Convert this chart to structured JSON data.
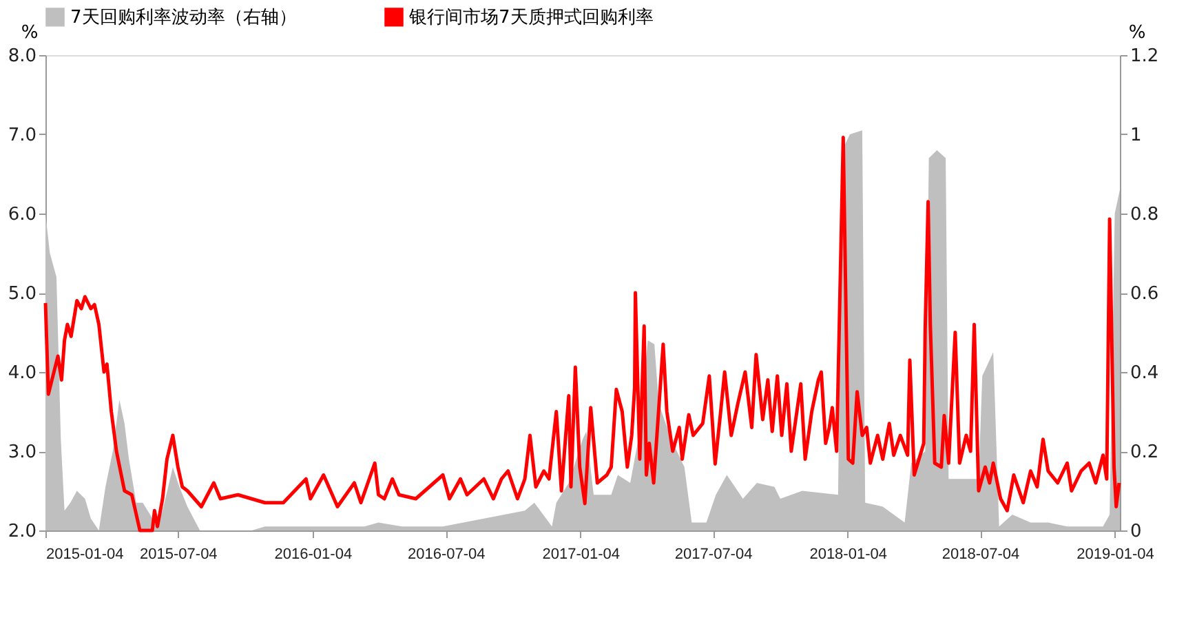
{
  "chart_data": {
    "type": "line",
    "legend": "top",
    "ylabel": "%",
    "y2label": "%",
    "xlim": [
      "2015-01-04",
      "2019-01-11"
    ],
    "xticks": [
      "2015-01-04",
      "2015-07-04",
      "2016-01-04",
      "2016-07-04",
      "2017-01-04",
      "2017-07-04",
      "2018-01-04",
      "2018-07-04",
      "2019-01-04"
    ],
    "ylim": [
      2,
      8
    ],
    "yticks": [
      {
        "value": 2,
        "label": "2.0"
      },
      {
        "value": 3,
        "label": "3.0"
      },
      {
        "value": 4,
        "label": "4.0"
      },
      {
        "value": 5,
        "label": "5.0"
      },
      {
        "value": 6,
        "label": "6.0"
      },
      {
        "value": 7,
        "label": "7.0"
      },
      {
        "value": 8,
        "label": "8.0"
      }
    ],
    "y2lim": [
      0,
      1.2
    ],
    "y2ticks": [
      0,
      0.2,
      0.4,
      0.6,
      0.8,
      1,
      1.2
    ],
    "series": [
      {
        "name": "7天回购利率波动率（右轴）",
        "type": "area",
        "axis": "y2",
        "color": "#bfbfbf",
        "x": [
          "2015-01-04",
          "2015-01-10",
          "2015-01-19",
          "2015-01-25",
          "2015-01-30",
          "2015-02-07",
          "2015-02-16",
          "2015-02-27",
          "2015-03-07",
          "2015-03-18",
          "2015-03-27",
          "2015-04-06",
          "2015-04-15",
          "2015-04-22",
          "2015-04-28",
          "2015-05-08",
          "2015-05-17",
          "2015-05-27",
          "2015-06-05",
          "2015-06-13",
          "2015-06-27",
          "2015-07-06",
          "2015-07-17",
          "2015-08-03",
          "2015-10-13",
          "2015-10-31",
          "2016-03-15",
          "2016-04-03",
          "2016-05-05",
          "2016-06-30",
          "2016-10-20",
          "2016-11-02",
          "2016-11-26",
          "2016-12-02",
          "2016-12-19",
          "2017-01-07",
          "2017-01-12",
          "2017-01-22",
          "2017-02-15",
          "2017-02-24",
          "2017-03-13",
          "2017-03-24",
          "2017-04-06",
          "2017-04-15",
          "2017-04-21",
          "2017-05-08",
          "2017-05-26",
          "2017-06-05",
          "2017-06-25",
          "2017-07-08",
          "2017-07-23",
          "2017-08-14",
          "2017-09-02",
          "2017-09-26",
          "2017-10-04",
          "2017-11-03",
          "2017-12-22",
          "2017-12-28",
          "2018-01-07",
          "2018-01-24",
          "2018-01-28",
          "2018-02-21",
          "2018-03-23",
          "2018-04-01",
          "2018-04-20",
          "2018-04-25",
          "2018-05-06",
          "2018-05-18",
          "2018-05-22",
          "2018-07-02",
          "2018-07-07",
          "2018-07-22",
          "2018-07-30",
          "2018-08-17",
          "2018-09-11",
          "2018-10-05",
          "2018-10-31",
          "2018-12-19",
          "2018-12-28",
          "2019-01-04",
          "2019-01-11"
        ],
        "values": [
          0.8,
          0.7,
          0.64,
          0.23,
          0.05,
          0.07,
          0.1,
          0.08,
          0.03,
          0.0,
          0.11,
          0.2,
          0.33,
          0.27,
          0.18,
          0.07,
          0.07,
          0.04,
          0.01,
          0.05,
          0.16,
          0.11,
          0.06,
          0.0,
          0.0,
          0.01,
          0.01,
          0.02,
          0.01,
          0.01,
          0.05,
          0.07,
          0.01,
          0.07,
          0.12,
          0.23,
          0.25,
          0.09,
          0.09,
          0.14,
          0.12,
          0.23,
          0.48,
          0.47,
          0.32,
          0.23,
          0.16,
          0.02,
          0.02,
          0.09,
          0.14,
          0.08,
          0.12,
          0.11,
          0.08,
          0.1,
          0.09,
          0.96,
          1.0,
          1.01,
          0.07,
          0.06,
          0.02,
          0.17,
          0.2,
          0.94,
          0.96,
          0.94,
          0.13,
          0.13,
          0.39,
          0.45,
          0.01,
          0.04,
          0.02,
          0.02,
          0.01,
          0.01,
          0.04,
          0.8,
          0.86
        ]
      },
      {
        "name": "银行间市场7天质押式回购利率",
        "type": "line",
        "color": "#ff0000",
        "x": [
          "2015-01-04",
          "2015-01-08",
          "2015-01-21",
          "2015-01-26",
          "2015-01-30",
          "2015-02-03",
          "2015-02-08",
          "2015-02-16",
          "2015-02-22",
          "2015-02-27",
          "2015-03-07",
          "2015-03-12",
          "2015-03-18",
          "2015-03-25",
          "2015-03-29",
          "2015-04-04",
          "2015-04-11",
          "2015-04-22",
          "2015-05-02",
          "2015-05-13",
          "2015-05-30",
          "2015-06-02",
          "2015-06-06",
          "2015-06-13",
          "2015-06-19",
          "2015-06-27",
          "2015-07-04",
          "2015-07-10",
          "2015-07-17",
          "2015-08-05",
          "2015-08-22",
          "2015-08-31",
          "2015-09-24",
          "2015-10-31",
          "2015-11-25",
          "2015-12-26",
          "2016-01-01",
          "2016-01-19",
          "2016-02-07",
          "2016-03-01",
          "2016-03-10",
          "2016-03-29",
          "2016-04-03",
          "2016-04-11",
          "2016-04-22",
          "2016-05-01",
          "2016-05-24",
          "2016-06-30",
          "2016-07-09",
          "2016-07-24",
          "2016-08-02",
          "2016-08-25",
          "2016-09-07",
          "2016-09-18",
          "2016-09-27",
          "2016-10-10",
          "2016-10-20",
          "2016-10-27",
          "2016-11-04",
          "2016-11-15",
          "2016-11-22",
          "2016-12-02",
          "2016-12-09",
          "2016-12-19",
          "2016-12-22",
          "2016-12-28",
          "2017-01-03",
          "2017-01-10",
          "2017-01-18",
          "2017-01-27",
          "2017-02-09",
          "2017-02-15",
          "2017-02-22",
          "2017-03-02",
          "2017-03-09",
          "2017-03-15",
          "2017-03-19",
          "2017-03-20",
          "2017-03-26",
          "2017-04-01",
          "2017-04-04",
          "2017-04-08",
          "2017-04-14",
          "2017-04-27",
          "2017-05-02",
          "2017-05-10",
          "2017-05-19",
          "2017-05-23",
          "2017-06-01",
          "2017-06-07",
          "2017-06-20",
          "2017-06-29",
          "2017-07-07",
          "2017-07-14",
          "2017-07-20",
          "2017-07-29",
          "2017-08-07",
          "2017-08-17",
          "2017-08-26",
          "2017-09-01",
          "2017-09-10",
          "2017-09-17",
          "2017-09-23",
          "2017-09-30",
          "2017-10-06",
          "2017-10-13",
          "2017-10-19",
          "2017-11-01",
          "2017-11-07",
          "2017-11-16",
          "2017-11-25",
          "2017-11-29",
          "2017-12-05",
          "2017-12-10",
          "2017-12-14",
          "2017-12-20",
          "2017-12-29",
          "2018-01-05",
          "2018-01-11",
          "2018-01-17",
          "2018-01-24",
          "2018-01-30",
          "2018-02-04",
          "2018-02-14",
          "2018-02-21",
          "2018-03-02",
          "2018-03-08",
          "2018-03-17",
          "2018-03-27",
          "2018-03-30",
          "2018-04-05",
          "2018-04-18",
          "2018-04-20",
          "2018-04-24",
          "2018-04-27",
          "2018-05-03",
          "2018-05-12",
          "2018-05-16",
          "2018-05-22",
          "2018-05-31",
          "2018-06-06",
          "2018-06-15",
          "2018-06-21",
          "2018-06-26",
          "2018-07-02",
          "2018-07-11",
          "2018-07-17",
          "2018-07-22",
          "2018-08-01",
          "2018-08-10",
          "2018-08-19",
          "2018-09-01",
          "2018-09-11",
          "2018-09-20",
          "2018-09-28",
          "2018-10-05",
          "2018-10-18",
          "2018-10-31",
          "2018-11-06",
          "2018-11-19",
          "2018-11-30",
          "2018-12-09",
          "2018-12-19",
          "2018-12-24",
          "2018-12-28",
          "2019-01-03",
          "2019-01-06",
          "2019-01-10"
        ],
        "values": [
          4.87,
          3.72,
          4.2,
          3.9,
          4.4,
          4.6,
          4.45,
          4.9,
          4.8,
          4.95,
          4.8,
          4.85,
          4.6,
          4.0,
          4.1,
          3.5,
          3.0,
          2.5,
          2.45,
          2.0,
          2.0,
          2.25,
          2.05,
          2.4,
          2.9,
          3.2,
          2.8,
          2.55,
          2.5,
          2.3,
          2.6,
          2.4,
          2.45,
          2.35,
          2.35,
          2.65,
          2.4,
          2.7,
          2.3,
          2.6,
          2.35,
          2.85,
          2.45,
          2.4,
          2.65,
          2.45,
          2.4,
          2.7,
          2.4,
          2.65,
          2.45,
          2.65,
          2.4,
          2.65,
          2.75,
          2.4,
          2.65,
          3.2,
          2.55,
          2.75,
          2.65,
          3.5,
          2.5,
          3.7,
          2.55,
          4.06,
          2.8,
          2.34,
          3.55,
          2.6,
          2.7,
          2.8,
          3.78,
          3.5,
          2.8,
          3.2,
          3.8,
          5.0,
          2.9,
          4.58,
          2.7,
          3.1,
          2.6,
          4.35,
          3.5,
          3.0,
          3.3,
          2.9,
          3.46,
          3.2,
          3.35,
          3.95,
          2.84,
          3.45,
          4.0,
          3.2,
          3.6,
          4.0,
          3.3,
          4.22,
          3.4,
          3.9,
          3.25,
          3.95,
          3.2,
          3.85,
          3.0,
          3.85,
          2.9,
          3.5,
          3.9,
          4.0,
          3.1,
          3.3,
          3.55,
          3.0,
          6.96,
          2.9,
          2.85,
          3.75,
          3.2,
          3.3,
          2.85,
          3.2,
          2.9,
          3.35,
          2.95,
          3.2,
          2.95,
          4.15,
          2.7,
          3.1,
          4.55,
          6.15,
          4.6,
          2.85,
          2.8,
          3.45,
          2.85,
          4.5,
          2.85,
          3.2,
          3.0,
          4.6,
          2.5,
          2.8,
          2.6,
          2.85,
          2.4,
          2.25,
          2.7,
          2.35,
          2.75,
          2.55,
          3.15,
          2.75,
          2.6,
          2.85,
          2.5,
          2.75,
          2.85,
          2.6,
          2.95,
          2.65,
          5.93,
          2.8,
          2.3,
          2.6
        ]
      }
    ]
  }
}
